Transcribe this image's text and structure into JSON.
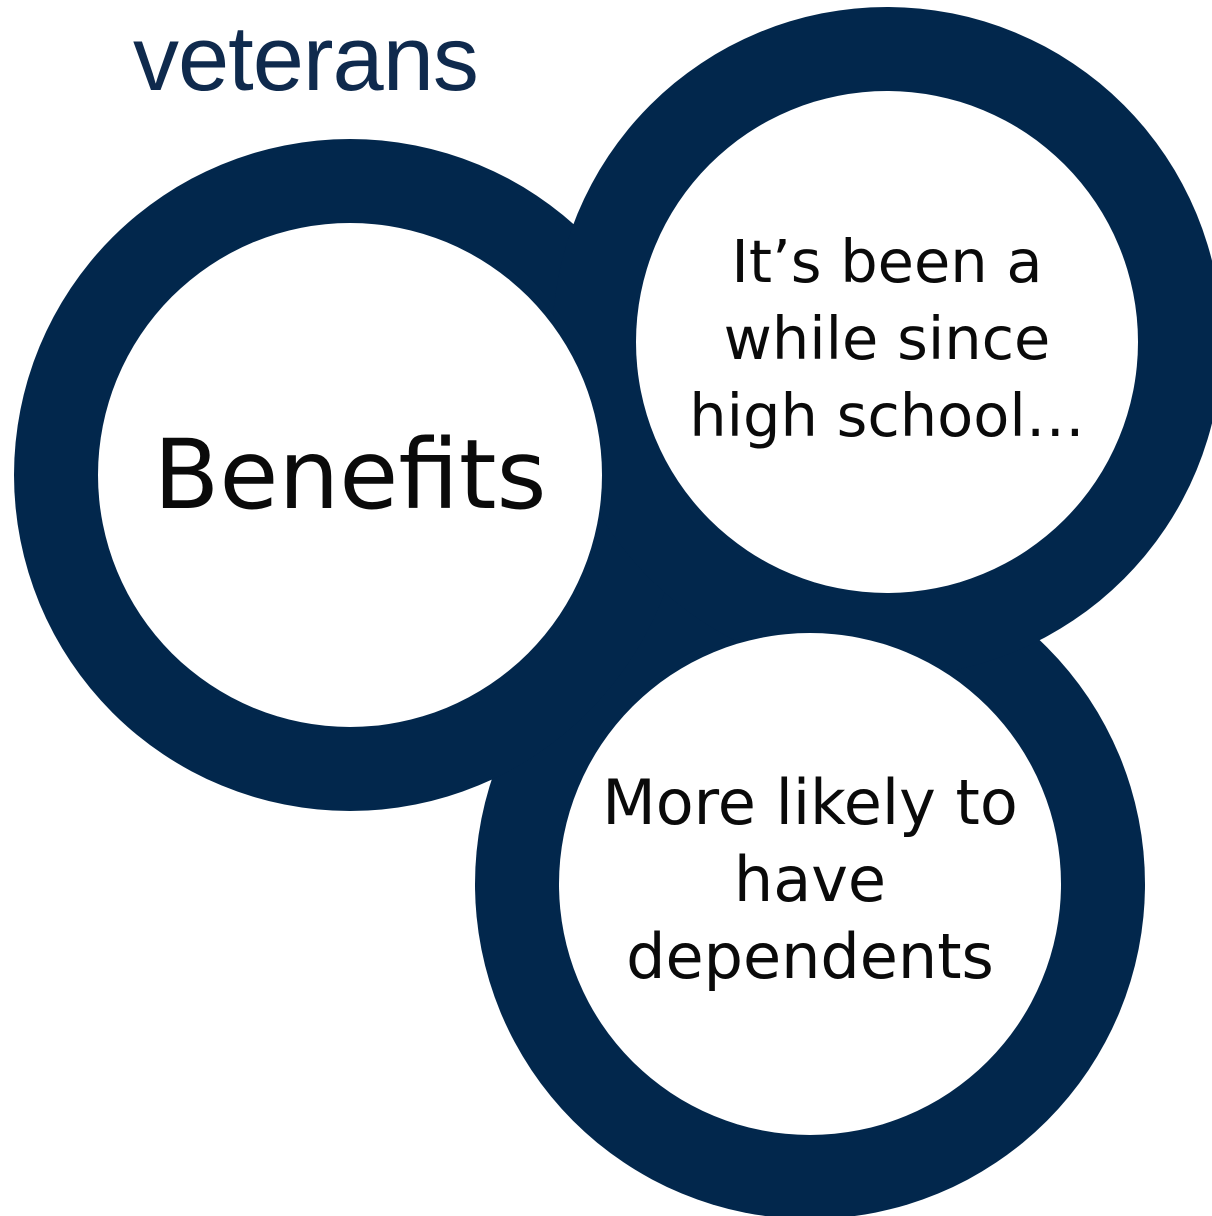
{
  "title": "veterans",
  "colors": {
    "ring": "#02274c",
    "title": "#0f2a4d",
    "text": "#0a0a0a",
    "background": "#ffffff"
  },
  "circles": [
    {
      "id": "left",
      "lines": [
        "Benefits"
      ]
    },
    {
      "id": "right",
      "lines": [
        "It’s been a",
        "while since",
        "high school…"
      ]
    },
    {
      "id": "bottom",
      "lines": [
        "More likely to",
        "have",
        "dependents"
      ]
    }
  ]
}
